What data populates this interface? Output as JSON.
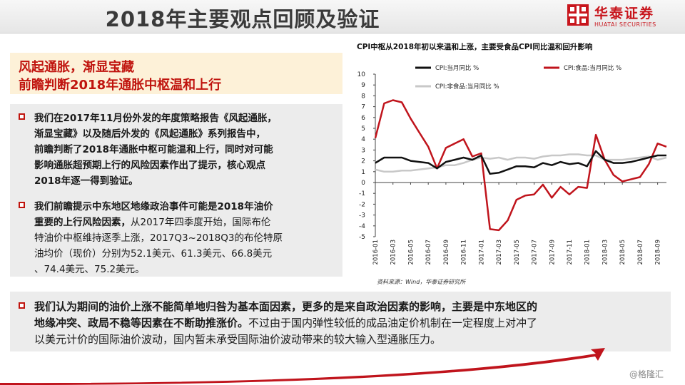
{
  "header": {
    "title": "2018年主要观点回顾及验证",
    "logo_cn": "华泰证券",
    "logo_en": "HUATAI SECURITIES"
  },
  "headline": {
    "line1": "风起通胀，渐显宝藏",
    "line2": "前瞻判断2018年通胀中枢温和上行"
  },
  "bullets": [
    {
      "lines": [
        "我们在2017年11月份外发的年度策略报告《风起通胀，",
        "渐显宝藏》以及随后外发的《风起通胀》系列报告中，",
        "前瞻判断了2018年通胀中枢可能温和上行，同时对可能",
        "影响通胀超预期上行的风险因素作出了提示，核心观点",
        "2018年逐一得到验证。"
      ]
    },
    {
      "lines": [
        "我们前瞻提示中东地区地缘政治事件可能是2018年油价",
        "重要的上行风险因素，",
        "从2017年四季度开始，国际布伦",
        "特油价中枢维持逐季上涨，2017Q3~2018Q3的布伦特原",
        "油均价（现价）分别为52.1美元、61.3美元、66.8美元",
        "、74.4美元、75.2美元。"
      ]
    }
  ],
  "bottom": {
    "line1": "我们认为期间的油价上涨不能简单地归咎为基本面因素，更多的是来自政治因素的影响，主要是中东地区的",
    "line2_bold": "地缘冲突、政局不稳等因素在不断助推涨价。",
    "line2_rest": "不过由于国内弹性较低的成品油定价机制在一定程度上对冲了",
    "line3": "以美元计价的国际油价波动，国内暂未承受国际油价波动带来的较大输入型通胀压力。"
  },
  "watermark": "@格隆汇",
  "chart_data": {
    "type": "line",
    "title": "CPI中枢从2018年初以来温和上涨，主要受食品CPI同比温和回升影响",
    "source": "资料来源：Wind，华泰证券研究所",
    "ylim": [
      -5,
      10
    ],
    "yticks": [
      -5,
      -4,
      -3,
      -2,
      -1,
      0,
      1,
      2,
      3,
      4,
      5,
      6,
      7,
      8,
      9,
      10
    ],
    "xticks": [
      "2016-01",
      "2016-03",
      "2016-05",
      "2016-07",
      "2016-09",
      "2016-11",
      "2017-01",
      "2017-03",
      "2017-05",
      "2017-07",
      "2017-09",
      "2017-11",
      "2018-01",
      "2018-03",
      "2018-05",
      "2018-07",
      "2018-09"
    ],
    "x": [
      "2016-01",
      "2016-02",
      "2016-03",
      "2016-04",
      "2016-05",
      "2016-06",
      "2016-07",
      "2016-08",
      "2016-09",
      "2016-10",
      "2016-11",
      "2016-12",
      "2017-01",
      "2017-02",
      "2017-03",
      "2017-04",
      "2017-05",
      "2017-06",
      "2017-07",
      "2017-08",
      "2017-09",
      "2017-10",
      "2017-11",
      "2017-12",
      "2018-01",
      "2018-02",
      "2018-03",
      "2018-04",
      "2018-05",
      "2018-06",
      "2018-07",
      "2018-08",
      "2018-09",
      "2018-10"
    ],
    "series": [
      {
        "name": "CPI:当月同比 %",
        "color": "#111111",
        "width": 2.5,
        "values": [
          1.8,
          2.3,
          2.3,
          2.3,
          2.0,
          1.9,
          1.8,
          1.3,
          1.9,
          2.1,
          2.3,
          2.1,
          2.5,
          0.8,
          0.9,
          1.2,
          1.5,
          1.5,
          1.4,
          1.8,
          1.6,
          1.9,
          1.7,
          1.8,
          1.5,
          2.9,
          2.1,
          1.8,
          1.8,
          1.9,
          2.1,
          2.3,
          2.5,
          2.5
        ]
      },
      {
        "name": "CPI:食品:当月同比 %",
        "color": "#c0141c",
        "width": 2.5,
        "values": [
          4.1,
          7.3,
          7.6,
          7.4,
          5.9,
          4.6,
          3.3,
          1.3,
          3.2,
          3.6,
          4.0,
          2.4,
          2.7,
          -4.3,
          -4.4,
          -3.5,
          -1.6,
          -1.2,
          -1.1,
          -0.2,
          -1.4,
          -0.4,
          -1.1,
          -0.4,
          -0.5,
          4.4,
          2.1,
          0.7,
          0.1,
          0.3,
          0.5,
          1.7,
          3.6,
          3.3
        ]
      },
      {
        "name": "CPI:非食品:当月同比 %",
        "color": "#c8c8c8",
        "width": 2.5,
        "values": [
          1.2,
          1.0,
          1.0,
          1.1,
          1.1,
          1.2,
          1.3,
          1.4,
          1.6,
          1.6,
          1.8,
          2.1,
          2.3,
          2.2,
          2.3,
          2.1,
          2.3,
          2.3,
          2.2,
          2.4,
          2.5,
          2.5,
          2.6,
          2.6,
          2.5,
          2.5,
          2.1,
          2.1,
          2.1,
          2.2,
          2.3,
          2.4,
          2.1,
          2.3
        ]
      }
    ],
    "legend_position": "top"
  }
}
